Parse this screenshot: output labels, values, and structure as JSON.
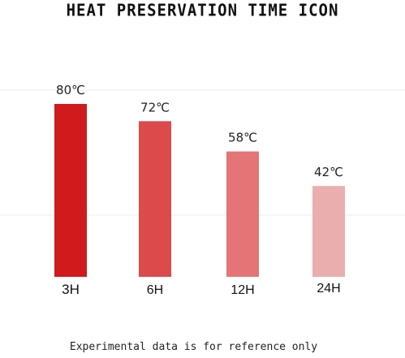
{
  "chart_data": {
    "type": "bar",
    "title": "HEAT PRESERVATION TIME ICON",
    "categories": [
      "3H",
      "6H",
      "12H",
      "24H"
    ],
    "values": [
      80,
      72,
      58,
      42
    ],
    "value_labels": [
      "80℃",
      "72℃",
      "58℃",
      "42℃"
    ],
    "unit": "℃",
    "colors": [
      "#d01a1c",
      "#dc4a4c",
      "#e47476",
      "#ebaeae"
    ],
    "grid": true,
    "legend": "none"
  },
  "footnote": "Experimental data is for reference only"
}
